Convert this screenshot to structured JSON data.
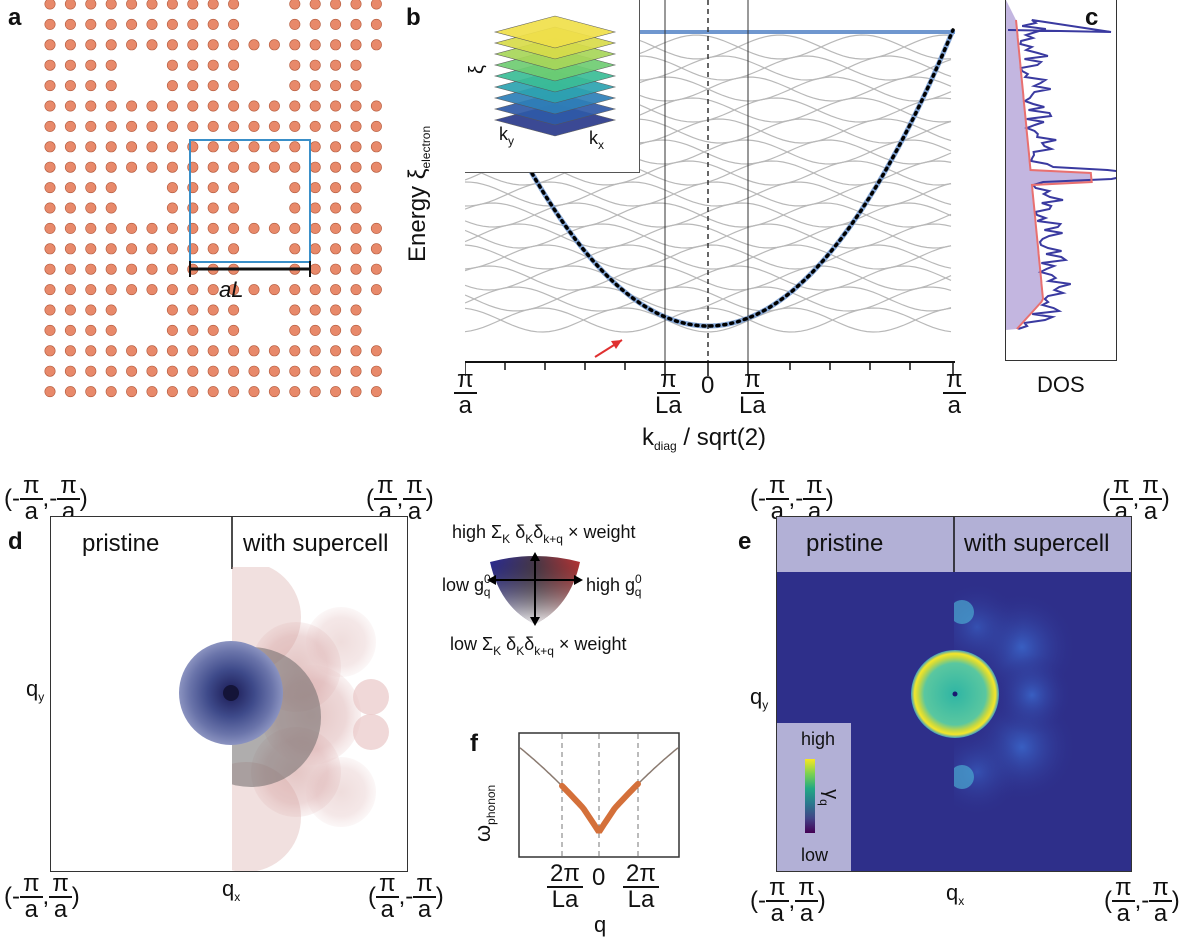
{
  "panel_labels": {
    "a": "a",
    "b": "b",
    "c": "c",
    "d": "d",
    "e": "e",
    "f": "f"
  },
  "panel_a": {
    "scale_label": "aL"
  },
  "panel_b": {
    "ylabel_main": "Energy  ξ",
    "ylabel_sub": "electron",
    "x_tick_labels": {
      "left": {
        "num": "π",
        "den": "a"
      },
      "mid_left": {
        "num": "π",
        "den": "La"
      },
      "zero": "0",
      "mid_right": {
        "num": "π",
        "den": "La"
      },
      "right": {
        "num": "π",
        "den": "a"
      }
    },
    "xlabel_main": "k",
    "xlabel_sub": "diag",
    "xlabel_rest": " / sqrt(2)",
    "inset": {
      "z": "ξ",
      "ky": "k",
      "ky_sub": "y",
      "kx": "k",
      "kx_sub": "x"
    }
  },
  "panel_c": {
    "xlabel": "DOS"
  },
  "panel_d": {
    "left_title": "pristine",
    "right_title": "with supercell",
    "qy": "q",
    "qy_sub": "y",
    "qx": "q",
    "qx_sub": "x",
    "corner_tl": {
      "open": "(-",
      "n1": "π",
      "d1": "a",
      "sep": ",-",
      "n2": "π",
      "d2": "a",
      "close": ")"
    },
    "corner_tr": {
      "open": "(",
      "n1": "π",
      "d1": "a",
      "sep": ",",
      "n2": "π",
      "d2": "a",
      "close": ")"
    },
    "corner_bl": {
      "open": "(-",
      "n1": "π",
      "d1": "a",
      "sep": ", ",
      "n2": "π",
      "d2": "a",
      "close": ")"
    },
    "corner_br": {
      "open": "(",
      "n1": "π",
      "d1": "a",
      "sep": ",-",
      "n2": "π",
      "d2": "a",
      "close": ")"
    }
  },
  "legend": {
    "top": "high Σ",
    "top_k": "K",
    "top_d": " δ",
    "top_dk": "K",
    "top_d2": "δ",
    "top_dkq": "k+q",
    "top_w": " × weight",
    "bottom": "low Σ",
    "bottom_k": "K",
    "bottom_d": " δ",
    "bottom_dk": "K",
    "bottom_d2": "δ",
    "bottom_dkq": "k+q",
    "bottom_w": " × weight",
    "left": "low g",
    "left_sup": "0",
    "left_sub": "q",
    "right": "high g",
    "right_sup": "0",
    "right_sub": "q"
  },
  "panel_e": {
    "left_title": "pristine",
    "right_title": "with supercell",
    "qy": "q",
    "qy_sub": "y",
    "qx": "q",
    "qx_sub": "x",
    "colorbar_high": "high",
    "colorbar_low": "low",
    "colorbar_label": "γ",
    "colorbar_label_sub": "q",
    "corner_tl": {
      "open": "(-",
      "n1": "π",
      "d1": "a",
      "sep": ",-",
      "n2": "π",
      "d2": "a",
      "close": ")"
    },
    "corner_tr": {
      "open": "(",
      "n1": "π",
      "d1": "a",
      "sep": ",",
      "n2": "π",
      "d2": "a",
      "close": ")"
    },
    "corner_bl": {
      "open": "(-",
      "n1": "π",
      "d1": "a",
      "sep": ", ",
      "n2": "π",
      "d2": "a",
      "close": ")"
    },
    "corner_br": {
      "open": "(",
      "n1": "π",
      "d1": "a",
      "sep": ",-",
      "n2": "π",
      "d2": "a",
      "close": ")"
    }
  },
  "panel_f": {
    "ylabel": "ω",
    "ylabel_sub": "phonon",
    "xlabel": "q",
    "ticks": {
      "left": {
        "num": "2π",
        "den": "La"
      },
      "zero": "0",
      "right": {
        "num": "2π",
        "den": "La"
      }
    }
  },
  "colors": {
    "atom": "#e8896a",
    "atom_edge": "#b35a3c",
    "supercell_box": "#3a8fc8",
    "band_gray": "#b8b8b8",
    "band_blue": "#6f97cf",
    "dos_fill": "#b8a8d8",
    "dos_red": "#e87070",
    "dos_blue": "#3a3aa0",
    "e_background": "#2e2f8a",
    "e_header": "#b2b0d6",
    "phonon_orange": "#d4703a"
  }
}
